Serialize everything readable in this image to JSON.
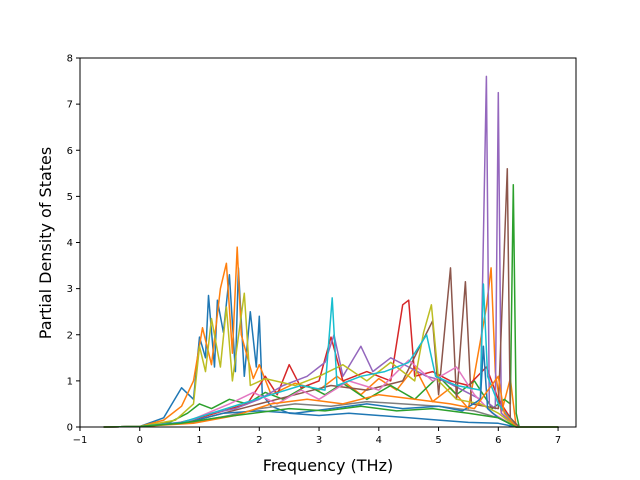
{
  "chart_data": {
    "type": "line",
    "title": "",
    "xlabel": "Frequency (THz)",
    "ylabel": "Partial Density of States",
    "xlim": [
      -1,
      7.3
    ],
    "ylim": [
      0,
      8
    ],
    "xticks": [
      -1,
      0,
      1,
      2,
      3,
      4,
      5,
      6,
      7
    ],
    "yticks": [
      0,
      1,
      2,
      3,
      4,
      5,
      6,
      7,
      8
    ],
    "grid": false,
    "legend": "none",
    "palette": [
      "#1f77b4",
      "#ff7f0e",
      "#2ca02c",
      "#d62728",
      "#9467bd",
      "#8c564b",
      "#e377c2",
      "#7f7f7f",
      "#bcbd22",
      "#17becf"
    ],
    "series": [
      {
        "color": "#1f77b4",
        "points": [
          [
            -0.6,
            0
          ],
          [
            0,
            0.01
          ],
          [
            0.4,
            0.2
          ],
          [
            0.7,
            0.85
          ],
          [
            0.9,
            0.6
          ],
          [
            1.0,
            1.95
          ],
          [
            1.1,
            1.5
          ],
          [
            1.15,
            2.85
          ],
          [
            1.25,
            1.3
          ],
          [
            1.3,
            2.75
          ],
          [
            1.4,
            2.05
          ],
          [
            1.5,
            3.3
          ],
          [
            1.6,
            1.2
          ],
          [
            1.65,
            3.45
          ],
          [
            1.75,
            1.1
          ],
          [
            1.85,
            2.5
          ],
          [
            1.95,
            1.3
          ],
          [
            2.0,
            2.4
          ],
          [
            2.05,
            0.7
          ],
          [
            2.2,
            0.45
          ],
          [
            2.5,
            0.3
          ],
          [
            3.0,
            0.25
          ],
          [
            3.5,
            0.3
          ],
          [
            4.0,
            0.25
          ],
          [
            4.5,
            0.2
          ],
          [
            5.0,
            0.15
          ],
          [
            5.5,
            0.1
          ],
          [
            6.0,
            0.08
          ],
          [
            6.3,
            0
          ],
          [
            7.0,
            0
          ]
        ]
      },
      {
        "color": "#ff7f0e",
        "points": [
          [
            -0.6,
            0
          ],
          [
            0,
            0.01
          ],
          [
            0.4,
            0.15
          ],
          [
            0.7,
            0.45
          ],
          [
            0.9,
            1.0
          ],
          [
            1.05,
            2.15
          ],
          [
            1.2,
            1.35
          ],
          [
            1.35,
            3.0
          ],
          [
            1.45,
            3.55
          ],
          [
            1.55,
            1.6
          ],
          [
            1.63,
            3.9
          ],
          [
            1.7,
            2.0
          ],
          [
            1.9,
            1.05
          ],
          [
            2.0,
            1.35
          ],
          [
            2.2,
            0.7
          ],
          [
            2.6,
            0.95
          ],
          [
            3.0,
            0.8
          ],
          [
            3.3,
            1.1
          ],
          [
            3.7,
            0.7
          ],
          [
            4.0,
            1.05
          ],
          [
            4.3,
            0.8
          ],
          [
            4.6,
            1.3
          ],
          [
            4.9,
            0.55
          ],
          [
            5.2,
            0.85
          ],
          [
            5.5,
            0.4
          ],
          [
            5.8,
            2.6
          ],
          [
            5.88,
            3.45
          ],
          [
            5.95,
            1.2
          ],
          [
            6.05,
            0.3
          ],
          [
            6.2,
            1.05
          ],
          [
            6.3,
            0
          ],
          [
            7.0,
            0
          ]
        ]
      },
      {
        "color": "#2ca02c",
        "points": [
          [
            -0.6,
            0
          ],
          [
            0,
            0.01
          ],
          [
            0.5,
            0.1
          ],
          [
            0.8,
            0.3
          ],
          [
            1.0,
            0.5
          ],
          [
            1.2,
            0.4
          ],
          [
            1.5,
            0.6
          ],
          [
            1.8,
            0.5
          ],
          [
            2.1,
            0.75
          ],
          [
            2.4,
            0.6
          ],
          [
            2.8,
            0.9
          ],
          [
            3.1,
            0.7
          ],
          [
            3.4,
            0.95
          ],
          [
            3.8,
            0.6
          ],
          [
            4.2,
            0.9
          ],
          [
            4.6,
            0.6
          ],
          [
            5.0,
            1.1
          ],
          [
            5.3,
            0.7
          ],
          [
            5.6,
            1.0
          ],
          [
            5.9,
            0.4
          ],
          [
            6.1,
            0.6
          ],
          [
            6.2,
            0.5
          ],
          [
            6.25,
            5.25
          ],
          [
            6.3,
            0.3
          ],
          [
            6.35,
            0
          ],
          [
            7.0,
            0
          ]
        ]
      },
      {
        "color": "#d62728",
        "points": [
          [
            -0.6,
            0
          ],
          [
            0,
            0.01
          ],
          [
            0.6,
            0.08
          ],
          [
            1.0,
            0.2
          ],
          [
            1.4,
            0.35
          ],
          [
            1.8,
            0.5
          ],
          [
            2.1,
            1.1
          ],
          [
            2.3,
            0.7
          ],
          [
            2.5,
            1.35
          ],
          [
            2.7,
            0.85
          ],
          [
            3.0,
            1.0
          ],
          [
            3.2,
            1.95
          ],
          [
            3.4,
            1.0
          ],
          [
            3.8,
            1.2
          ],
          [
            4.2,
            1.0
          ],
          [
            4.4,
            2.65
          ],
          [
            4.5,
            2.75
          ],
          [
            4.6,
            1.1
          ],
          [
            4.9,
            1.2
          ],
          [
            5.2,
            1.0
          ],
          [
            5.5,
            0.9
          ],
          [
            5.8,
            1.3
          ],
          [
            6.0,
            0.6
          ],
          [
            6.3,
            0
          ],
          [
            7.0,
            0
          ]
        ]
      },
      {
        "color": "#9467bd",
        "points": [
          [
            -0.6,
            0
          ],
          [
            0,
            0.01
          ],
          [
            0.7,
            0.08
          ],
          [
            1.2,
            0.3
          ],
          [
            1.6,
            0.4
          ],
          [
            2.0,
            0.6
          ],
          [
            2.4,
            0.9
          ],
          [
            2.8,
            1.1
          ],
          [
            3.1,
            1.4
          ],
          [
            3.25,
            2.0
          ],
          [
            3.4,
            1.1
          ],
          [
            3.7,
            1.75
          ],
          [
            3.9,
            1.2
          ],
          [
            4.2,
            1.5
          ],
          [
            4.5,
            1.3
          ],
          [
            4.8,
            1.1
          ],
          [
            5.1,
            1.0
          ],
          [
            5.4,
            0.8
          ],
          [
            5.7,
            0.6
          ],
          [
            5.8,
            7.6
          ],
          [
            5.85,
            0.5
          ],
          [
            5.95,
            0.4
          ],
          [
            6.0,
            7.25
          ],
          [
            6.05,
            0.3
          ],
          [
            6.3,
            0
          ],
          [
            7.0,
            0
          ]
        ]
      },
      {
        "color": "#8c564b",
        "points": [
          [
            -0.6,
            0
          ],
          [
            0,
            0.01
          ],
          [
            0.8,
            0.1
          ],
          [
            1.4,
            0.3
          ],
          [
            2.0,
            0.5
          ],
          [
            2.6,
            0.7
          ],
          [
            3.2,
            0.9
          ],
          [
            3.8,
            0.8
          ],
          [
            4.4,
            1.0
          ],
          [
            4.9,
            2.3
          ],
          [
            5.0,
            0.7
          ],
          [
            5.2,
            3.45
          ],
          [
            5.3,
            0.6
          ],
          [
            5.45,
            3.15
          ],
          [
            5.55,
            0.5
          ],
          [
            6.0,
            0.4
          ],
          [
            6.15,
            5.6
          ],
          [
            6.2,
            0.2
          ],
          [
            6.35,
            0
          ],
          [
            7.0,
            0
          ]
        ]
      },
      {
        "color": "#e377c2",
        "points": [
          [
            -0.6,
            0
          ],
          [
            0,
            0.01
          ],
          [
            0.8,
            0.12
          ],
          [
            1.5,
            0.5
          ],
          [
            1.9,
            0.75
          ],
          [
            2.3,
            0.5
          ],
          [
            2.7,
            0.8
          ],
          [
            3.0,
            0.6
          ],
          [
            3.5,
            1.0
          ],
          [
            4.0,
            0.8
          ],
          [
            4.5,
            1.45
          ],
          [
            4.9,
            1.0
          ],
          [
            5.3,
            1.3
          ],
          [
            5.6,
            0.7
          ],
          [
            5.9,
            0.3
          ],
          [
            6.3,
            0
          ],
          [
            7.0,
            0
          ]
        ]
      },
      {
        "color": "#7f7f7f",
        "points": [
          [
            -0.6,
            0
          ],
          [
            0,
            0.01
          ],
          [
            0.9,
            0.1
          ],
          [
            1.5,
            0.25
          ],
          [
            2.0,
            0.4
          ],
          [
            2.6,
            0.5
          ],
          [
            3.2,
            0.45
          ],
          [
            3.8,
            0.55
          ],
          [
            4.4,
            0.5
          ],
          [
            5.0,
            0.45
          ],
          [
            5.6,
            0.35
          ],
          [
            6.0,
            0.2
          ],
          [
            6.3,
            0
          ],
          [
            7.0,
            0
          ]
        ]
      },
      {
        "color": "#bcbd22",
        "points": [
          [
            -0.6,
            0
          ],
          [
            0,
            0.01
          ],
          [
            0.6,
            0.15
          ],
          [
            0.9,
            0.5
          ],
          [
            1.0,
            1.75
          ],
          [
            1.1,
            1.2
          ],
          [
            1.2,
            2.35
          ],
          [
            1.35,
            1.3
          ],
          [
            1.45,
            2.6
          ],
          [
            1.55,
            1.0
          ],
          [
            1.75,
            2.9
          ],
          [
            1.85,
            0.9
          ],
          [
            2.1,
            1.05
          ],
          [
            2.6,
            0.9
          ],
          [
            3.0,
            1.1
          ],
          [
            3.4,
            1.35
          ],
          [
            3.8,
            1.0
          ],
          [
            4.2,
            1.4
          ],
          [
            4.6,
            1.0
          ],
          [
            4.75,
            2.05
          ],
          [
            4.88,
            2.65
          ],
          [
            5.0,
            1.0
          ],
          [
            5.3,
            0.6
          ],
          [
            5.7,
            0.5
          ],
          [
            6.0,
            0.3
          ],
          [
            6.3,
            0
          ],
          [
            7.0,
            0
          ]
        ]
      },
      {
        "color": "#17becf",
        "points": [
          [
            -0.6,
            0
          ],
          [
            0,
            0.01
          ],
          [
            0.7,
            0.1
          ],
          [
            1.2,
            0.3
          ],
          [
            1.7,
            0.5
          ],
          [
            2.2,
            0.7
          ],
          [
            2.7,
            0.9
          ],
          [
            3.1,
            0.8
          ],
          [
            3.22,
            2.8
          ],
          [
            3.3,
            0.9
          ],
          [
            3.7,
            1.1
          ],
          [
            4.1,
            1.2
          ],
          [
            4.5,
            1.4
          ],
          [
            4.8,
            2.0
          ],
          [
            4.95,
            1.1
          ],
          [
            5.3,
            0.9
          ],
          [
            5.7,
            0.8
          ],
          [
            5.75,
            3.1
          ],
          [
            5.82,
            1.1
          ],
          [
            6.0,
            0.5
          ],
          [
            6.3,
            0
          ],
          [
            7.0,
            0
          ]
        ]
      },
      {
        "color": "#1f77b4",
        "points": [
          [
            -0.6,
            0
          ],
          [
            0,
            0.01
          ],
          [
            0.8,
            0.1
          ],
          [
            1.4,
            0.3
          ],
          [
            2.0,
            0.35
          ],
          [
            2.6,
            0.3
          ],
          [
            3.2,
            0.4
          ],
          [
            3.8,
            0.5
          ],
          [
            4.4,
            0.4
          ],
          [
            5.0,
            0.45
          ],
          [
            5.4,
            0.35
          ],
          [
            5.7,
            0.6
          ],
          [
            5.75,
            1.75
          ],
          [
            5.82,
            0.4
          ],
          [
            6.0,
            0.2
          ],
          [
            6.3,
            0
          ],
          [
            7.0,
            0
          ]
        ]
      },
      {
        "color": "#ff7f0e",
        "points": [
          [
            -0.6,
            0
          ],
          [
            0,
            0.01
          ],
          [
            0.9,
            0.08
          ],
          [
            1.6,
            0.25
          ],
          [
            2.2,
            0.5
          ],
          [
            2.8,
            0.6
          ],
          [
            3.4,
            0.5
          ],
          [
            4.0,
            0.7
          ],
          [
            4.6,
            0.6
          ],
          [
            5.2,
            0.5
          ],
          [
            5.6,
            0.4
          ],
          [
            6.0,
            1.1
          ],
          [
            6.1,
            0.3
          ],
          [
            6.3,
            0
          ],
          [
            7.0,
            0
          ]
        ]
      },
      {
        "color": "#2ca02c",
        "points": [
          [
            -0.6,
            0
          ],
          [
            0,
            0.01
          ],
          [
            0.7,
            0.08
          ],
          [
            1.3,
            0.2
          ],
          [
            1.9,
            0.3
          ],
          [
            2.5,
            0.4
          ],
          [
            3.1,
            0.35
          ],
          [
            3.7,
            0.45
          ],
          [
            4.3,
            0.35
          ],
          [
            4.9,
            0.4
          ],
          [
            5.5,
            0.3
          ],
          [
            6.0,
            0.2
          ],
          [
            6.3,
            0
          ],
          [
            7.0,
            0
          ]
        ]
      }
    ]
  }
}
